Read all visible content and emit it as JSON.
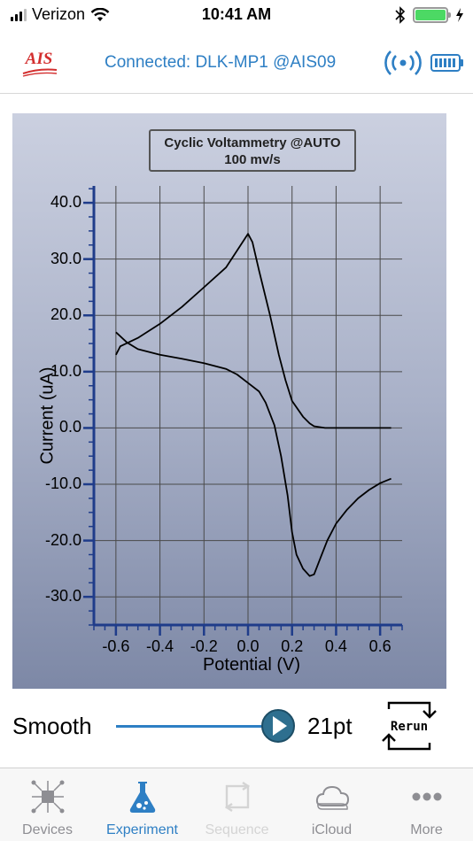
{
  "status_bar": {
    "carrier": "Verizon",
    "time": "10:41 AM"
  },
  "header": {
    "logo_text": "AIS",
    "connection_text": "Connected: DLK-MP1 @AIS09",
    "accent_color": "#2e7fc4"
  },
  "chart_data": {
    "type": "line",
    "title": "Cyclic Voltammetry @AUTO",
    "subtitle": "100 mv/s",
    "xlabel": "Potential (V)",
    "ylabel": "Current (uA)",
    "xlim": [
      -0.7,
      0.7
    ],
    "ylim": [
      -35,
      43
    ],
    "x_ticks": [
      "-0.6",
      "-0.4",
      "-0.2",
      "0.0",
      "0.2",
      "0.4",
      "0.6"
    ],
    "y_ticks": [
      "40.0",
      "30.0",
      "20.0",
      "10.0",
      "0.0",
      "-10.0",
      "-20.0",
      "-30.0"
    ],
    "grid": true,
    "series": [
      {
        "x": [
          0.65,
          0.6,
          0.55,
          0.5,
          0.45,
          0.4,
          0.35,
          0.3,
          0.28,
          0.25,
          0.2,
          0.17,
          0.14,
          0.1,
          0.05,
          0.02,
          0.0,
          -0.05,
          -0.1,
          -0.2,
          -0.3,
          -0.4,
          -0.5,
          -0.58,
          -0.6
        ],
        "y": [
          0.0,
          0.0,
          0.0,
          0.0,
          0.0,
          0.0,
          0.0,
          0.3,
          0.8,
          2.0,
          4.8,
          8.5,
          13.0,
          20.0,
          28.0,
          33.0,
          34.5,
          31.5,
          28.5,
          25.0,
          21.5,
          18.5,
          16.0,
          14.5,
          13.0
        ]
      },
      {
        "x": [
          -0.6,
          -0.55,
          -0.5,
          -0.4,
          -0.3,
          -0.2,
          -0.1,
          -0.05,
          0.0,
          0.05,
          0.08,
          0.12,
          0.15,
          0.18,
          0.2,
          0.22,
          0.25,
          0.28,
          0.3,
          0.33,
          0.36,
          0.4,
          0.45,
          0.5,
          0.55,
          0.6,
          0.65
        ],
        "y": [
          17.0,
          15.2,
          14.0,
          13.0,
          12.3,
          11.5,
          10.5,
          9.5,
          8.0,
          6.5,
          4.5,
          0.5,
          -5.0,
          -12.0,
          -18.5,
          -22.5,
          -25.0,
          -26.3,
          -26.0,
          -23.0,
          -20.0,
          -17.0,
          -14.5,
          -12.5,
          -11.0,
          -9.8,
          -9.0
        ]
      }
    ]
  },
  "smooth": {
    "label": "Smooth",
    "value_text": "21pt",
    "level": 1.0
  },
  "rerun": {
    "label": "Rerun"
  },
  "tabs": [
    {
      "label": "Devices",
      "icon": "devices-icon",
      "state": "normal"
    },
    {
      "label": "Experiment",
      "icon": "flask-icon",
      "state": "active"
    },
    {
      "label": "Sequence",
      "icon": "sequence-icon",
      "state": "disabled"
    },
    {
      "label": "iCloud",
      "icon": "cloud-icon",
      "state": "normal"
    },
    {
      "label": "More",
      "icon": "more-icon",
      "state": "normal"
    }
  ]
}
